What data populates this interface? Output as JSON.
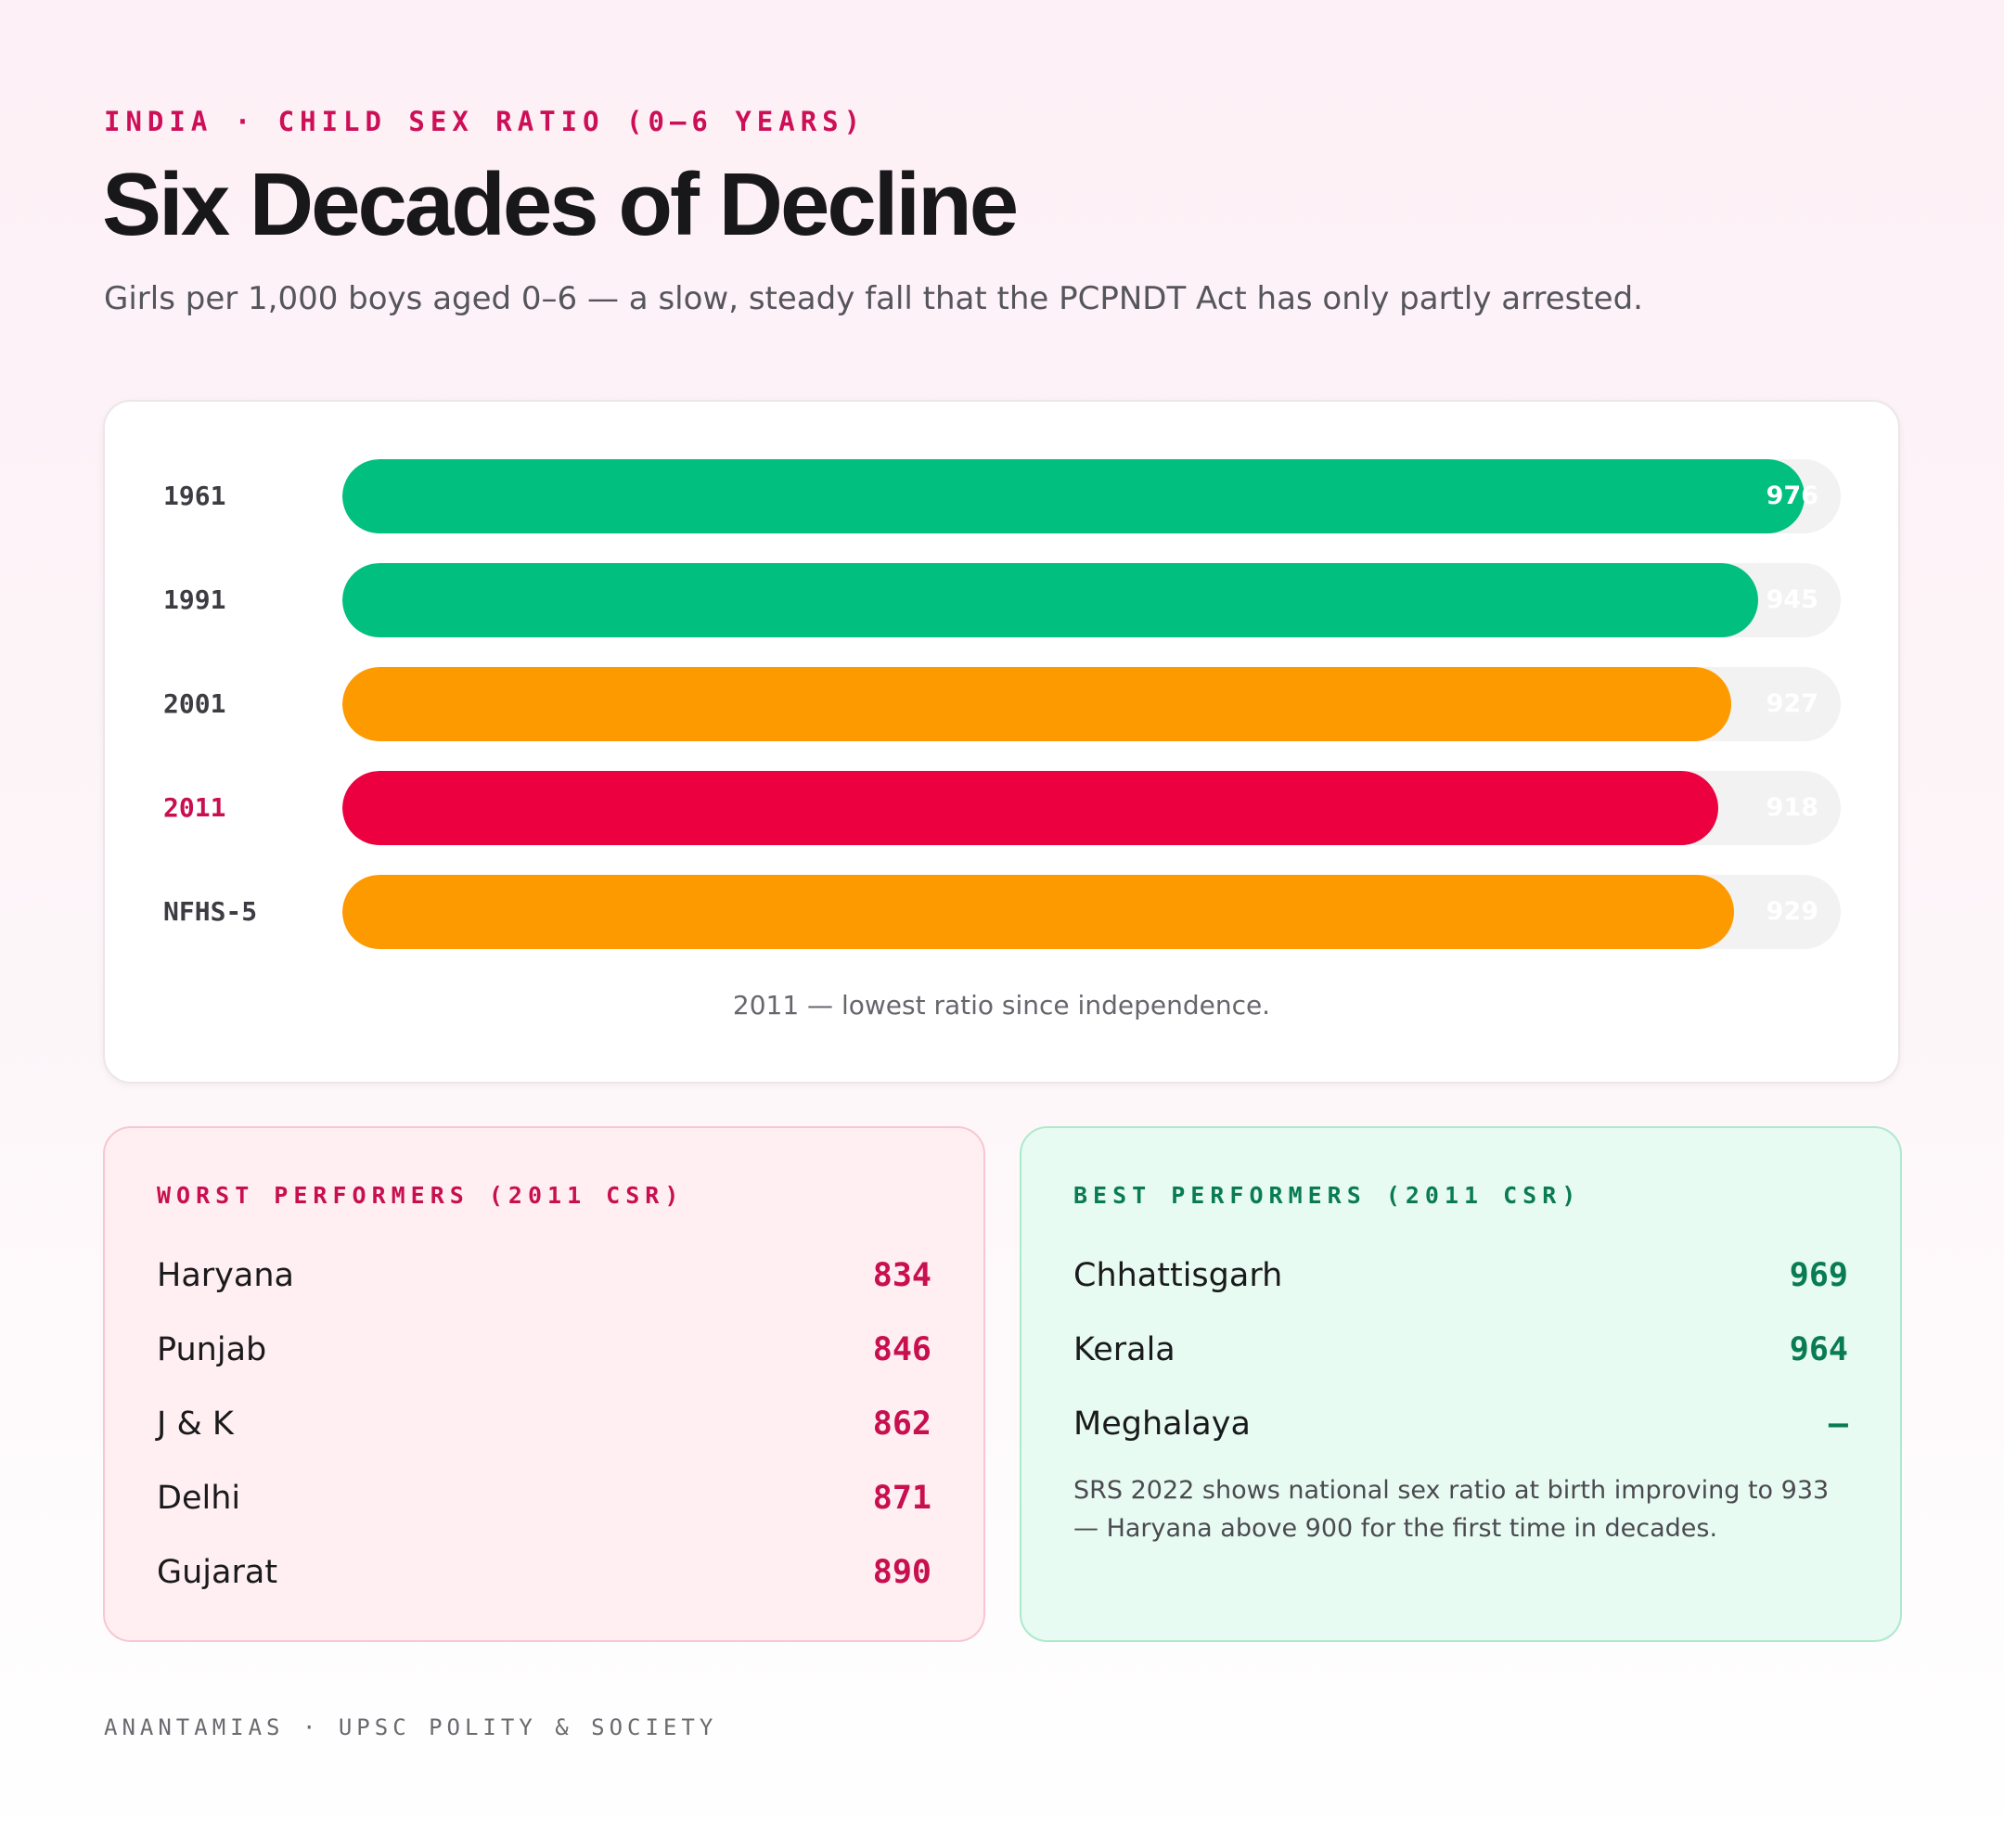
{
  "header": {
    "eyebrow": "INDIA · CHILD SEX RATIO (0–6 YEARS)",
    "title": "Six Decades of Decline",
    "subtitle": "Girls per 1,000 boys aged 0–6 — a slow, steady fall that the PCPNDT Act has only partly arrested."
  },
  "chart_data": {
    "type": "bar",
    "orientation": "horizontal",
    "categories": [
      "1961",
      "1991",
      "2001",
      "2011",
      "NFHS-5"
    ],
    "values": [
      976,
      945,
      927,
      918,
      929
    ],
    "value_labels": [
      "976",
      "945",
      "927",
      "918",
      "929"
    ],
    "bar_colors": [
      "#00bf7f",
      "#00bf7f",
      "#fd9a00",
      "#ec0040",
      "#fd9a00"
    ],
    "highlight_category": "2011",
    "xlim": [
      0,
      1000
    ],
    "title": "",
    "xlabel": "",
    "ylabel": "",
    "grid": false,
    "note": "2011 — lowest ratio since independence."
  },
  "worst": {
    "heading": "WORST PERFORMERS (2011 CSR)",
    "items": [
      {
        "name": "Haryana",
        "value": "834"
      },
      {
        "name": "Punjab",
        "value": "846"
      },
      {
        "name": "J & K",
        "value": "862"
      },
      {
        "name": "Delhi",
        "value": "871"
      },
      {
        "name": "Gujarat",
        "value": "890"
      }
    ]
  },
  "best": {
    "heading": "BEST PERFORMERS (2011 CSR)",
    "items": [
      {
        "name": "Chhattisgarh",
        "value": "969"
      },
      {
        "name": "Kerala",
        "value": "964"
      },
      {
        "name": "Meghalaya",
        "value": "–"
      }
    ],
    "note": "SRS 2022 shows national sex ratio at birth improving to 933 — Haryana above 900 for the first time in decades."
  },
  "footer": "ANANTAMIAS · UPSC POLITY & SOCIETY",
  "colors": {
    "accent": "#cc0f57",
    "good": "#00bf7f",
    "warning": "#fd9a00",
    "bad": "#ec0040"
  }
}
